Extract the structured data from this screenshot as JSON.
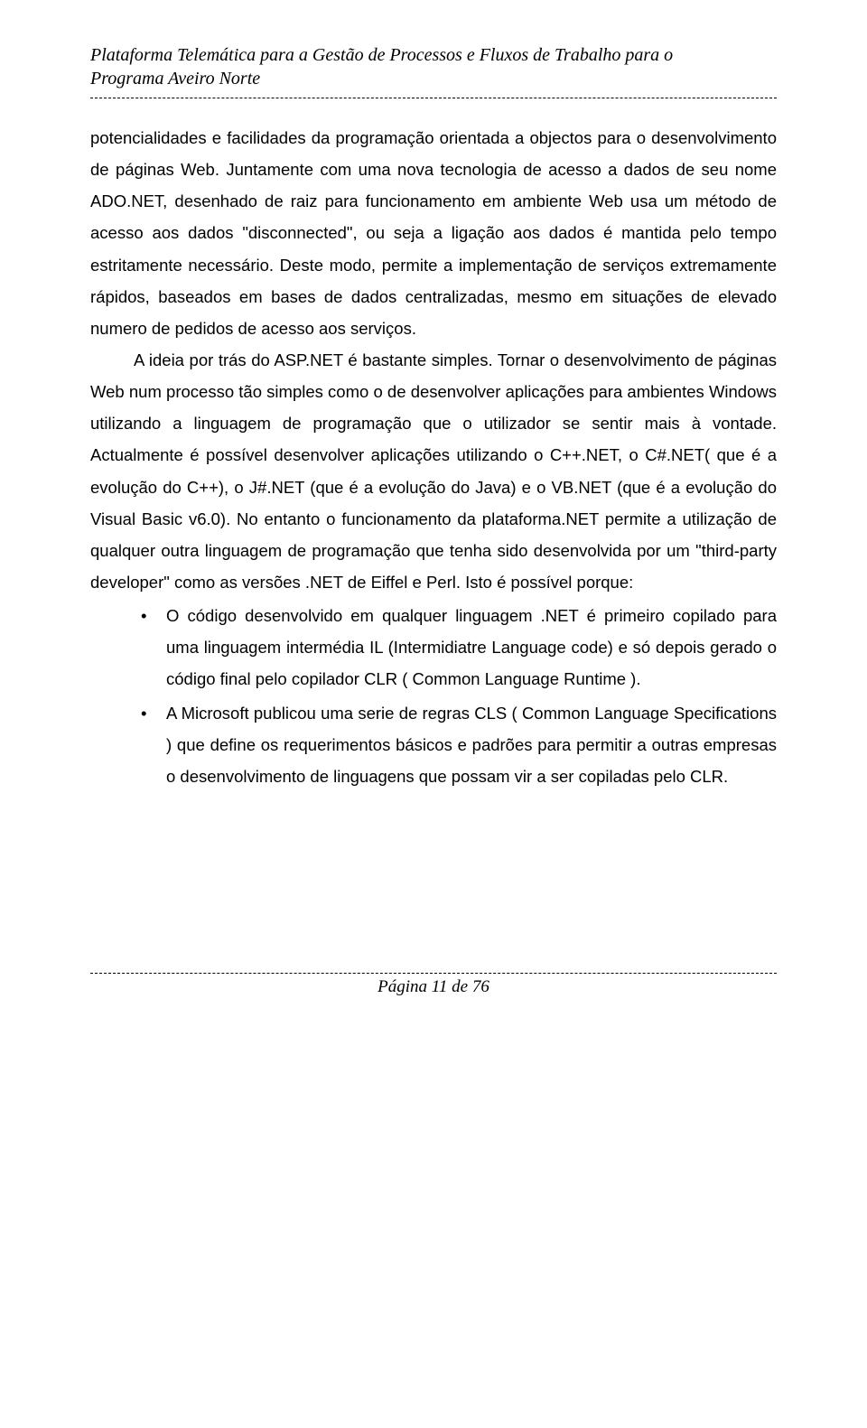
{
  "header": {
    "line1": "Plataforma Telemática para a Gestão de Processos e Fluxos de Trabalho para o",
    "line2": "Programa Aveiro Norte"
  },
  "paragraphs": {
    "p1": "potencialidades e facilidades da programação orientada a objectos para o desenvolvimento de páginas Web. Juntamente com uma nova tecnologia de acesso a dados de seu nome ADO.NET, desenhado de raiz para funcionamento em ambiente Web usa um método de acesso aos dados \"disconnected\", ou seja a ligação aos dados é mantida pelo tempo estritamente necessário. Deste modo, permite a implementação de serviços extremamente  rápidos, baseados em bases de dados centralizadas, mesmo em situações de elevado numero de pedidos de acesso aos serviços.",
    "p2": "A ideia por trás do ASP.NET é bastante simples. Tornar o desenvolvimento de páginas Web num processo tão simples como o de desenvolver aplicações para ambientes Windows utilizando a linguagem de programação que o utilizador se sentir mais à vontade. Actualmente é  possível desenvolver aplicações utilizando o  C++.NET, o C#.NET( que é a evolução do C++), o J#.NET (que é a evolução do Java) e o VB.NET (que é a evolução do Visual Basic v6.0). No entanto o funcionamento da plataforma.NET permite a utilização de qualquer outra linguagem de programação que tenha sido desenvolvida por um \"third-party developer\" como as versões .NET de Eiffel e Perl. Isto é possível porque:"
  },
  "bullets": {
    "b1": "O código desenvolvido em qualquer linguagem .NET é primeiro copilado para uma linguagem intermédia IL (Intermidiatre Language code) e só depois gerado o código final pelo copilador CLR ( Common Language Runtime ).",
    "b2": "A Microsoft publicou uma serie de regras CLS ( Common Language Specifications ) que define os requerimentos básicos e padrões para permitir a outras empresas o desenvolvimento de linguagens que possam vir a ser copiladas pelo CLR."
  },
  "footer": {
    "text": "Página 11 de 76"
  }
}
